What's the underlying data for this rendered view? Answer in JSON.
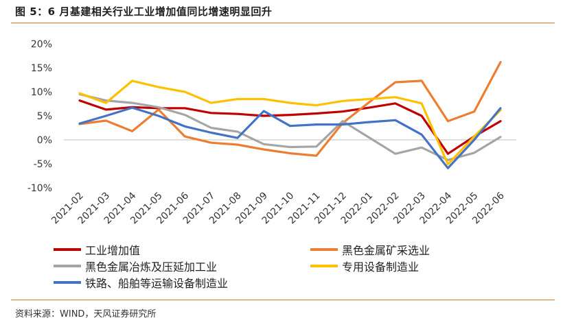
{
  "header": {
    "title": "图 5：6 月基建相关行业工业增加值同比增速明显回升"
  },
  "footer": {
    "source": "资料来源：WIND，天风证券研究所"
  },
  "chart_data": {
    "type": "line",
    "title": "",
    "xlabel": "",
    "ylabel": "",
    "ylim": [
      -10,
      20
    ],
    "yticks": [
      -10,
      -5,
      0,
      5,
      10,
      15,
      20
    ],
    "ytick_labels": [
      "-10%",
      "-5%",
      "0%",
      "5%",
      "10%",
      "15%",
      "20%"
    ],
    "grid": false,
    "legend_position": "bottom",
    "x": [
      "2021-02",
      "2021-03",
      "2021-04",
      "2021-05",
      "2021-06",
      "2021-07",
      "2021-08",
      "2021-09",
      "2021-10",
      "2021-11",
      "2021-12",
      "2022-01",
      "2022-02",
      "2022-03",
      "2022-04",
      "2022-05",
      "2022-06"
    ],
    "series": [
      {
        "name": "工业增加值",
        "color": "#c00000",
        "values": [
          8.2,
          6.3,
          6.8,
          6.6,
          6.6,
          5.6,
          5.4,
          5.0,
          5.2,
          5.5,
          5.9,
          6.7,
          7.6,
          5.0,
          -2.9,
          0.7,
          3.9
        ]
      },
      {
        "name": "黑色金属矿采选业",
        "color": "#ed7d31",
        "values": [
          3.3,
          4.0,
          1.8,
          6.3,
          0.7,
          -0.6,
          -1.0,
          -2.0,
          -2.8,
          -3.3,
          3.5,
          7.8,
          12.0,
          12.3,
          3.9,
          5.9,
          16.2
        ]
      },
      {
        "name": "黑色金属冶炼及压延加工业",
        "color": "#a5a5a5",
        "values": [
          9.5,
          8.2,
          7.7,
          6.8,
          5.2,
          2.5,
          1.7,
          -0.9,
          -1.5,
          -1.4,
          3.9,
          0.5,
          -2.9,
          -1.6,
          -4.2,
          -2.7,
          0.6
        ]
      },
      {
        "name": "专用设备制造业",
        "color": "#ffc000",
        "values": [
          9.7,
          7.7,
          12.3,
          11.0,
          10.0,
          7.7,
          8.5,
          8.5,
          7.7,
          7.2,
          8.1,
          8.5,
          8.9,
          7.6,
          -5.1,
          0.7,
          6.2
        ]
      },
      {
        "name": "铁路、船舶等运输设备制造业",
        "color": "#4472c4",
        "values": [
          3.4,
          5.0,
          6.7,
          5.0,
          2.8,
          1.5,
          0.4,
          6.0,
          2.9,
          3.2,
          3.2,
          3.7,
          4.1,
          1.1,
          -5.9,
          0.0,
          6.6
        ]
      }
    ]
  }
}
